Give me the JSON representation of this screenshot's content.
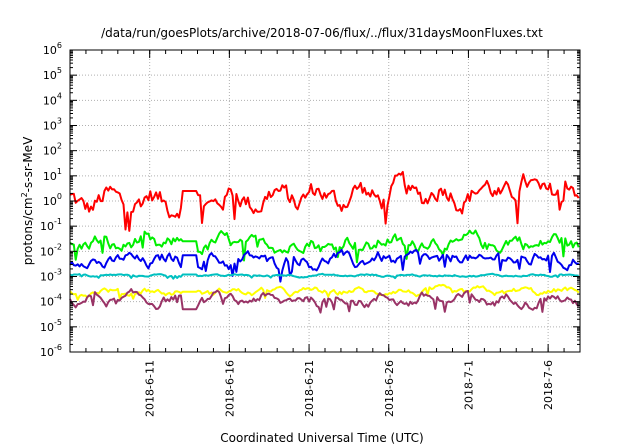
{
  "chart_data": {
    "type": "line",
    "title": "/data/run/goesPlots/archive/2018-07-06/flux/../flux/31daysMoonFluxes.txt",
    "xlabel": "Coordinated Universal Time (UTC)",
    "ylabel": {
      "base": "protons/cm",
      "sup": "2",
      "rest": "-s-sr-MeV"
    },
    "yscale": "log",
    "ylim": [
      1e-06,
      1000000.0
    ],
    "xlim": [
      "2018-06-06",
      "2018-07-08"
    ],
    "grid": true,
    "legend": "none",
    "x_ticks": [
      "2018-6-11",
      "2018-6-16",
      "2018-6-21",
      "2018-6-26",
      "2018-7-1",
      "2018-7-6"
    ],
    "y_ticks": [
      {
        "base": "10",
        "exp": "-6"
      },
      {
        "base": "10",
        "exp": "-5"
      },
      {
        "base": "10",
        "exp": "-4"
      },
      {
        "base": "10",
        "exp": "-3"
      },
      {
        "base": "10",
        "exp": "-2"
      },
      {
        "base": "10",
        "exp": "-1"
      },
      {
        "base": "10",
        "exp": "0"
      },
      {
        "base": "10",
        "exp": "1"
      },
      {
        "base": "10",
        "exp": "2"
      },
      {
        "base": "10",
        "exp": "3"
      },
      {
        "base": "10",
        "exp": "4"
      },
      {
        "base": "10",
        "exp": "5"
      },
      {
        "base": "10",
        "exp": "6"
      }
    ],
    "gap": [
      "2018-06-13",
      "2018-06-14"
    ],
    "series": [
      {
        "color": "#ff0000",
        "level": 2.0,
        "amp_dex": 0.55,
        "trend": [
          0.8,
          3.0
        ],
        "gap_value": 2.5
      },
      {
        "color": "#00ee00",
        "level": 0.02,
        "amp_dex": 0.35,
        "trend": [
          0.018,
          0.022
        ],
        "gap_value": 0.025
      },
      {
        "color": "#0000ee",
        "level": 0.0045,
        "amp_dex": 0.3,
        "trend": [
          0.004,
          0.005
        ],
        "gap_value": 0.007
      },
      {
        "color": "#00c0c0",
        "level": 0.0012,
        "amp_dex": 0.05,
        "trend": [
          0.0011,
          0.0011
        ],
        "gap_value": 0.0012
      },
      {
        "color": "#ffff00",
        "level": 0.00025,
        "amp_dex": 0.15,
        "trend": [
          0.00025,
          0.00025
        ],
        "gap_value": 0.00025
      },
      {
        "color": "#993366",
        "level": 0.00012,
        "amp_dex": 0.25,
        "trend": [
          0.00012,
          0.00012
        ],
        "gap_value": 5e-05
      }
    ]
  }
}
